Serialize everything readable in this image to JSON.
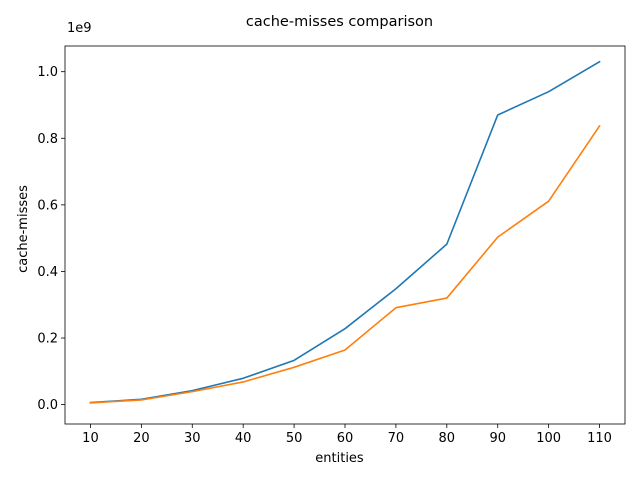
{
  "chart_data": {
    "type": "line",
    "title": "cache-misses comparison",
    "xlabel": "entities",
    "ylabel": "cache-misses",
    "y_offset_label": "1e9",
    "x": [
      10,
      20,
      30,
      40,
      50,
      60,
      70,
      80,
      90,
      100,
      110
    ],
    "x_tick_labels": [
      "10",
      "20",
      "30",
      "40",
      "50",
      "60",
      "70",
      "80",
      "90",
      "100",
      "110"
    ],
    "y_ticks": [
      0.0,
      0.2,
      0.4,
      0.6,
      0.8,
      1.0
    ],
    "y_tick_labels": [
      "0.0",
      "0.2",
      "0.4",
      "0.6",
      "0.8",
      "1.0"
    ],
    "xlim": [
      5,
      115
    ],
    "ylim": [
      -0.0583,
      1.0772
    ],
    "grid": false,
    "legend": "none",
    "series": [
      {
        "color": "#1f77b4",
        "values": [
          0.006,
          0.016,
          0.042,
          0.079,
          0.133,
          0.228,
          0.348,
          0.482,
          0.87,
          0.94,
          1.03
        ]
      },
      {
        "color": "#ff7f0e",
        "values": [
          0.005,
          0.014,
          0.039,
          0.068,
          0.112,
          0.164,
          0.291,
          0.32,
          0.503,
          0.611,
          0.837
        ]
      }
    ]
  }
}
